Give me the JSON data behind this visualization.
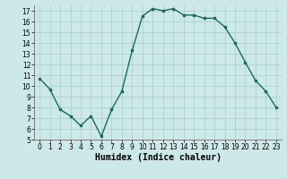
{
  "x": [
    0,
    1,
    2,
    3,
    4,
    5,
    6,
    7,
    8,
    9,
    10,
    11,
    12,
    13,
    14,
    15,
    16,
    17,
    18,
    19,
    20,
    21,
    22,
    23
  ],
  "y": [
    10.7,
    9.7,
    7.8,
    7.2,
    6.3,
    7.2,
    5.3,
    7.8,
    9.5,
    13.3,
    16.5,
    17.2,
    17.0,
    17.2,
    16.6,
    16.6,
    16.3,
    16.3,
    15.5,
    14.0,
    12.2,
    10.5,
    9.5,
    8.0
  ],
  "line_color": "#1a6b5a",
  "marker": "s",
  "marker_size": 2,
  "bg_color": "#cce8e8",
  "grid_color": "#aacccc",
  "xlabel": "Humidex (Indice chaleur)",
  "ylim": [
    5,
    17.5
  ],
  "xlim": [
    -0.5,
    23.5
  ],
  "yticks": [
    5,
    6,
    7,
    8,
    9,
    10,
    11,
    12,
    13,
    14,
    15,
    16,
    17
  ],
  "xticks": [
    0,
    1,
    2,
    3,
    4,
    5,
    6,
    7,
    8,
    9,
    10,
    11,
    12,
    13,
    14,
    15,
    16,
    17,
    18,
    19,
    20,
    21,
    22,
    23
  ],
  "tick_fontsize": 5.5,
  "xlabel_fontsize": 7,
  "linewidth": 1.0
}
